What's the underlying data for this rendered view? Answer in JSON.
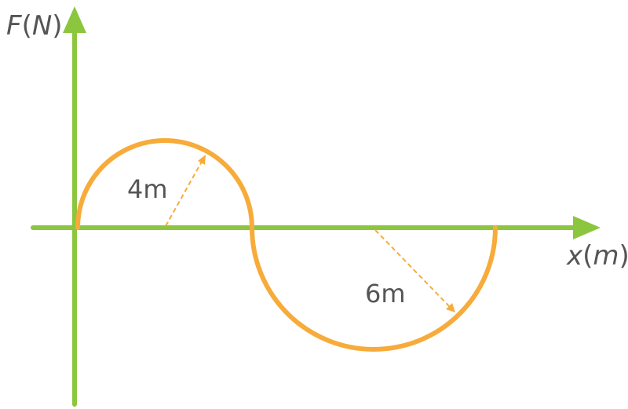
{
  "diagram": {
    "y_axis_label": {
      "var": "F",
      "open": "(",
      "unit": "N",
      "close": ")"
    },
    "x_axis_label": {
      "var": "x",
      "open": "(",
      "unit": "m",
      "close": ")"
    },
    "curve": {
      "description_segments": [
        {
          "kind": "upper-semicircle",
          "radius_m": 4
        },
        {
          "kind": "lower-semicircle",
          "radius_m": 6
        }
      ]
    },
    "radius_labels": [
      "4m",
      "6m"
    ],
    "colors": {
      "axis": "#8cc63f",
      "curve": "#f7ab3a",
      "text": "#555555"
    }
  }
}
